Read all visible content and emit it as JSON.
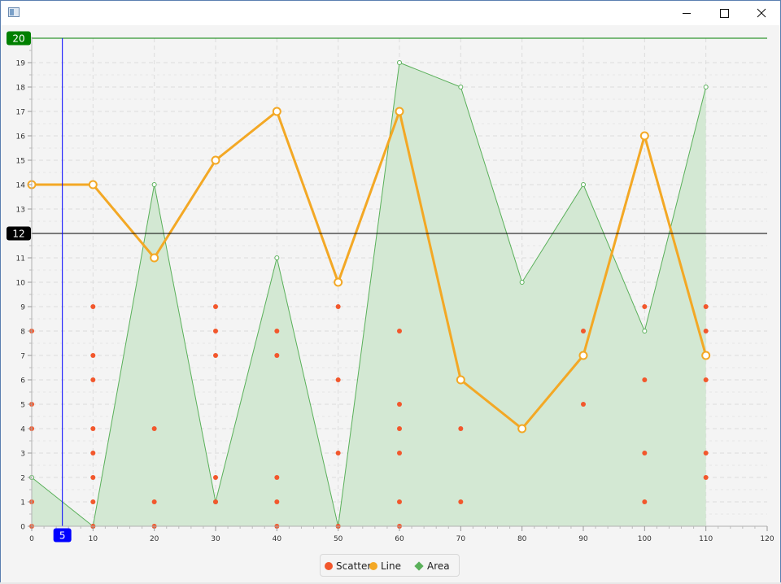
{
  "window": {
    "title": "",
    "controls": {
      "minimize": "minimize",
      "maximize": "maximize",
      "close": "close"
    }
  },
  "legend": [
    {
      "label": "Scatter",
      "color": "#f2572c"
    },
    {
      "label": "Line",
      "color": "#f3a825"
    },
    {
      "label": "Area",
      "color": "#5ab05a"
    }
  ],
  "markers": {
    "upper_line": {
      "label": "20",
      "value": 20,
      "color": "#008000"
    },
    "mid_line": {
      "label": "12",
      "value": 12,
      "color": "#000000"
    },
    "vertical_line": {
      "label": "5",
      "value": 5,
      "color": "#0000ff"
    }
  },
  "chart_data": {
    "type": "line",
    "title": "",
    "xlabel": "",
    "ylabel": "",
    "xlim": [
      0,
      120
    ],
    "ylim": [
      0,
      20
    ],
    "x_ticks": [
      0,
      10,
      20,
      30,
      40,
      50,
      60,
      70,
      80,
      90,
      100,
      110,
      120
    ],
    "y_ticks": [
      0,
      1,
      2,
      3,
      4,
      5,
      6,
      7,
      8,
      9,
      10,
      11,
      12,
      13,
      14,
      15,
      16,
      17,
      18,
      19
    ],
    "grid": true,
    "legend_position": "bottom",
    "series": [
      {
        "name": "Scatter",
        "kind": "scatter",
        "color": "#f2572c",
        "points": [
          [
            0,
            0
          ],
          [
            0,
            1
          ],
          [
            0,
            4
          ],
          [
            0,
            5
          ],
          [
            0,
            8
          ],
          [
            10,
            0
          ],
          [
            10,
            1
          ],
          [
            10,
            2
          ],
          [
            10,
            3
          ],
          [
            10,
            4
          ],
          [
            10,
            6
          ],
          [
            10,
            7
          ],
          [
            10,
            9
          ],
          [
            20,
            0
          ],
          [
            20,
            1
          ],
          [
            20,
            4
          ],
          [
            30,
            1
          ],
          [
            30,
            2
          ],
          [
            30,
            7
          ],
          [
            30,
            8
          ],
          [
            30,
            9
          ],
          [
            40,
            0
          ],
          [
            40,
            1
          ],
          [
            40,
            2
          ],
          [
            40,
            7
          ],
          [
            40,
            8
          ],
          [
            50,
            0
          ],
          [
            50,
            3
          ],
          [
            50,
            6
          ],
          [
            50,
            9
          ],
          [
            60,
            0
          ],
          [
            60,
            1
          ],
          [
            60,
            3
          ],
          [
            60,
            4
          ],
          [
            60,
            5
          ],
          [
            60,
            8
          ],
          [
            70,
            1
          ],
          [
            70,
            4
          ],
          [
            90,
            5
          ],
          [
            90,
            8
          ],
          [
            100,
            1
          ],
          [
            100,
            3
          ],
          [
            100,
            6
          ],
          [
            100,
            9
          ],
          [
            110,
            2
          ],
          [
            110,
            3
          ],
          [
            110,
            6
          ],
          [
            110,
            8
          ],
          [
            110,
            9
          ]
        ]
      },
      {
        "name": "Line",
        "kind": "line",
        "color": "#f3a825",
        "x": [
          0,
          10,
          20,
          30,
          40,
          50,
          60,
          70,
          80,
          90,
          100,
          110
        ],
        "y": [
          14,
          14,
          11,
          15,
          17,
          10,
          17,
          6,
          4,
          7,
          16,
          7
        ]
      },
      {
        "name": "Area",
        "kind": "area",
        "color": "#5ab05a",
        "fill": "#d3e8d3",
        "x": [
          0,
          10,
          20,
          30,
          40,
          50,
          60,
          70,
          80,
          90,
          100,
          110
        ],
        "y": [
          2,
          0,
          14,
          1,
          11,
          0,
          19,
          18,
          10,
          14,
          8,
          18
        ]
      }
    ]
  }
}
